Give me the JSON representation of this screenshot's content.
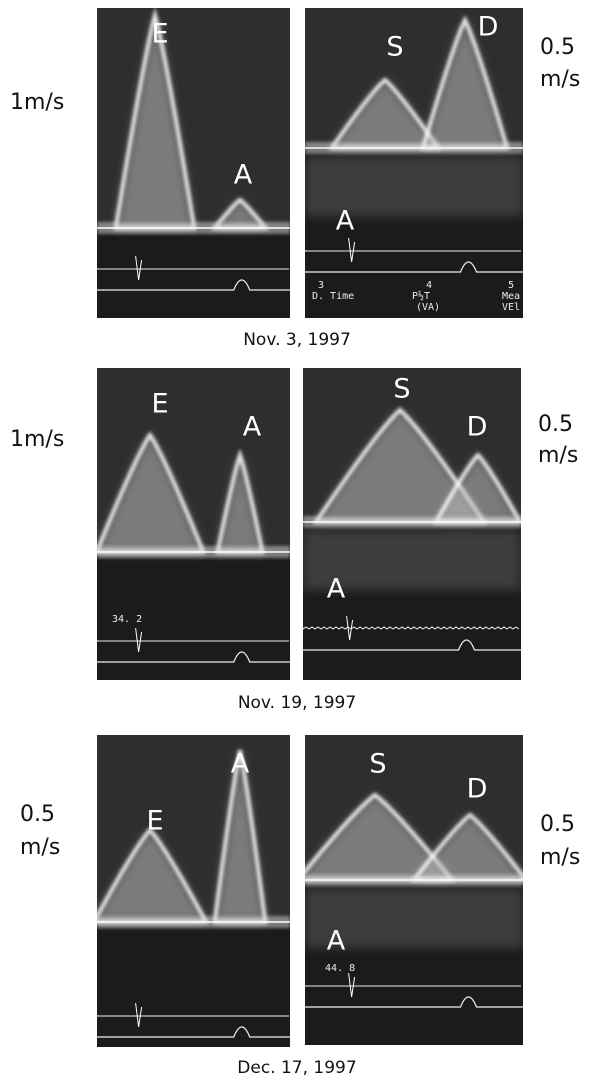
{
  "figure": {
    "rows": [
      {
        "date": "Nov. 3, 1997",
        "left": {
          "labels": [
            "E",
            "A"
          ],
          "scale": [
            "1m/s"
          ]
        },
        "right": {
          "labels": [
            "S",
            "D",
            "A"
          ],
          "scale": [
            "0.5",
            "m/s"
          ],
          "readouts": [
            "3",
            "D. Time",
            "4",
            "P½T",
            "(VA)",
            "5",
            "Mea",
            "VEl"
          ]
        }
      },
      {
        "date": "Nov. 19, 1997",
        "left": {
          "labels": [
            "E",
            "A"
          ],
          "scale": [
            "1m/s"
          ],
          "readouts": [
            "34. 2"
          ]
        },
        "right": {
          "labels": [
            "S",
            "D",
            "A"
          ],
          "scale": [
            "0.5",
            "m/s"
          ]
        }
      },
      {
        "date": "Dec. 17, 1997",
        "left": {
          "labels": [
            "E",
            "A"
          ],
          "scale": [
            "0.5",
            "m/s"
          ]
        },
        "right": {
          "labels": [
            "S",
            "D",
            "A"
          ],
          "scale": [
            "0.5",
            "m/s"
          ],
          "readouts": [
            "44. 8"
          ]
        }
      }
    ]
  }
}
